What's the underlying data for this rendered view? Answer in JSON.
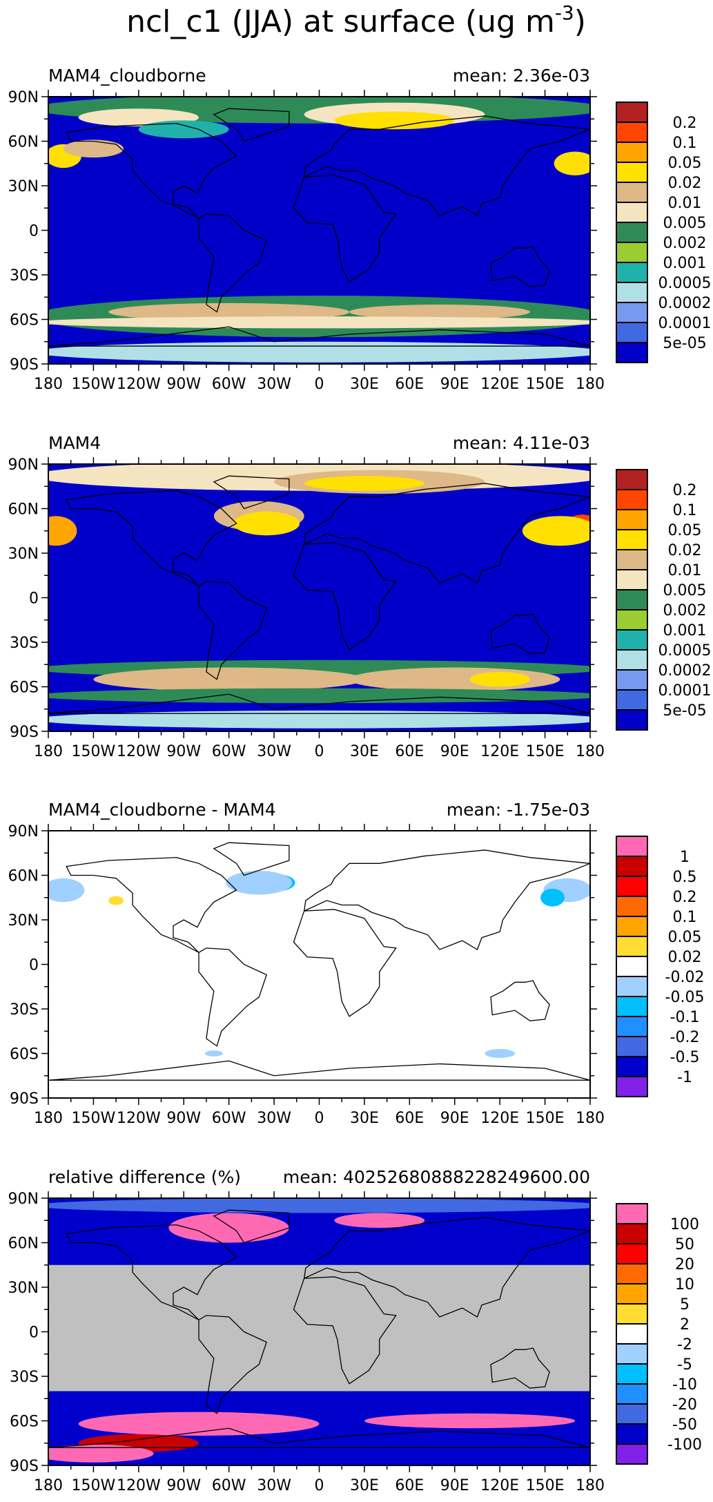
{
  "chart_data": {
    "type": "heatmap",
    "title": "ncl_c1 (JJA) at surface (ug m",
    "title_superscript": "-3",
    "lat_ticks": [
      "90N",
      "60N",
      "30N",
      "0",
      "30S",
      "60S",
      "90S"
    ],
    "lon_ticks": [
      "180",
      "150W",
      "120W",
      "90W",
      "60W",
      "30W",
      "0",
      "30E",
      "60E",
      "90E",
      "120E",
      "150E",
      "180"
    ],
    "lat_range": [
      -90,
      90
    ],
    "lon_range": [
      -180,
      180
    ],
    "panels": [
      {
        "name": "MAM4_cloudborne",
        "mean_label": "mean: 2.36e-03",
        "levels": [
          "0.2",
          "0.1",
          "0.05",
          "0.02",
          "0.01",
          "0.005",
          "0.002",
          "0.001",
          "0.0005",
          "0.0002",
          "0.0001",
          "5e-05"
        ],
        "colors": [
          "#B22222",
          "#FF4500",
          "#FFA500",
          "#FFE000",
          "#DEB887",
          "#F5E4C0",
          "#2E8B57",
          "#9ACD32",
          "#20B2AA",
          "#B0E0E6",
          "#7799EE",
          "#4169E1",
          "#0000C8"
        ]
      },
      {
        "name": "MAM4",
        "mean_label": "mean: 4.11e-03",
        "levels": [
          "0.2",
          "0.1",
          "0.05",
          "0.02",
          "0.01",
          "0.005",
          "0.002",
          "0.001",
          "0.0005",
          "0.0002",
          "0.0001",
          "5e-05"
        ],
        "colors": [
          "#B22222",
          "#FF4500",
          "#FFA500",
          "#FFE000",
          "#DEB887",
          "#F5E4C0",
          "#2E8B57",
          "#9ACD32",
          "#20B2AA",
          "#B0E0E6",
          "#7799EE",
          "#4169E1",
          "#0000C8"
        ]
      },
      {
        "name": "MAM4_cloudborne - MAM4",
        "mean_label": "mean: -1.75e-03",
        "levels": [
          "1",
          "0.5",
          "0.2",
          "0.1",
          "0.05",
          "0.02",
          "-0.02",
          "-0.05",
          "-0.1",
          "-0.2",
          "-0.5",
          "-1"
        ],
        "colors": [
          "#FF69B4",
          "#C80000",
          "#FF0000",
          "#FF6A00",
          "#FFA500",
          "#FFDD33",
          "#FFFFFF",
          "#A0D0FF",
          "#00BFFF",
          "#1E90FF",
          "#4169E1",
          "#0000CD",
          "#8020E8"
        ]
      },
      {
        "name": "relative difference (%)",
        "mean_label": "mean: 40252680888228249600.00",
        "levels": [
          "100",
          "50",
          "20",
          "10",
          "5",
          "2",
          "-2",
          "-5",
          "-10",
          "-20",
          "-50",
          "-100"
        ],
        "colors": [
          "#FF69B4",
          "#C80000",
          "#FF0000",
          "#FF6A00",
          "#FFA500",
          "#FFDD33",
          "#FFFFFF",
          "#A0D0FF",
          "#00BFFF",
          "#1E90FF",
          "#4169E1",
          "#0000CD",
          "#8020E8"
        ]
      }
    ]
  }
}
